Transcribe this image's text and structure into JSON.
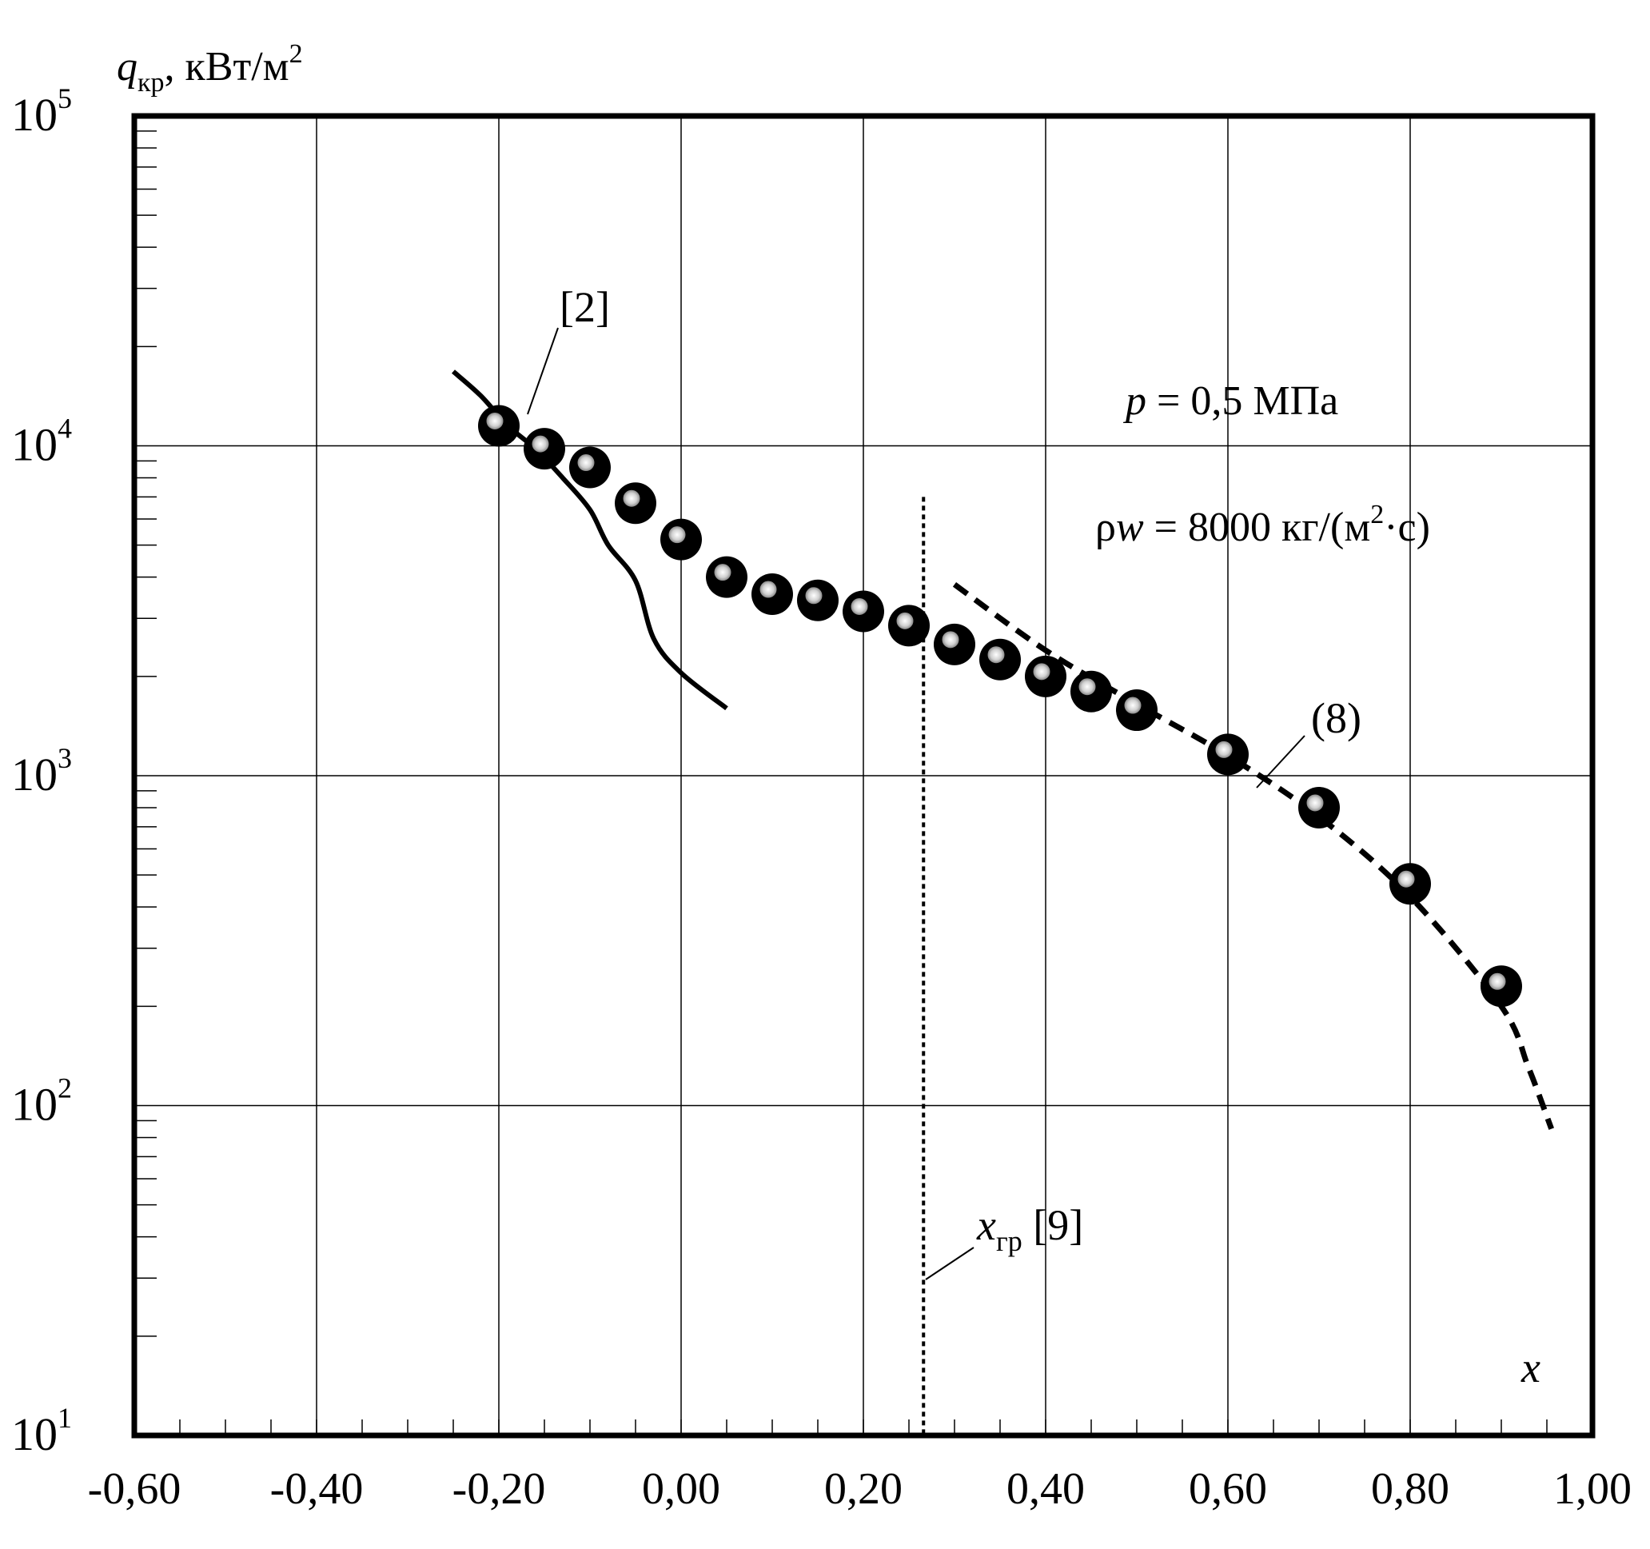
{
  "chart_data": {
    "type": "scatter",
    "xaxis": {
      "label": "x",
      "min": -0.6,
      "max": 1.0,
      "ticks": [
        -0.6,
        -0.4,
        -0.2,
        0.0,
        0.2,
        0.4,
        0.6,
        0.8,
        1.0
      ],
      "tick_labels": [
        "-0,60",
        "-0,40",
        "-0,20",
        "0,00",
        "0,20",
        "0,40",
        "0,60",
        "0,80",
        "1,00"
      ]
    },
    "yaxis": {
      "label_main": "q",
      "label_sub": "кр",
      "label_unit": ", кВт/м",
      "label_unit_sup": "2",
      "scale": "log",
      "min": 10,
      "max": 100000,
      "ticks": [
        10,
        100,
        1000,
        10000,
        100000
      ],
      "tick_labels": [
        {
          "base": "10",
          "exp": "1"
        },
        {
          "base": "10",
          "exp": "2"
        },
        {
          "base": "10",
          "exp": "3"
        },
        {
          "base": "10",
          "exp": "4"
        },
        {
          "base": "10",
          "exp": "5"
        }
      ]
    },
    "grid": true,
    "series": [
      {
        "kind": "markers",
        "points": [
          [
            -0.2,
            11500
          ],
          [
            -0.15,
            9800
          ],
          [
            -0.1,
            8600
          ],
          [
            -0.05,
            6700
          ],
          [
            0.0,
            5200
          ],
          [
            0.05,
            4000
          ],
          [
            0.1,
            3550
          ],
          [
            0.15,
            3400
          ],
          [
            0.2,
            3150
          ],
          [
            0.25,
            2850
          ],
          [
            0.3,
            2500
          ],
          [
            0.35,
            2250
          ],
          [
            0.4,
            2000
          ],
          [
            0.45,
            1800
          ],
          [
            0.5,
            1580
          ],
          [
            0.6,
            1160
          ],
          [
            0.7,
            800
          ],
          [
            0.8,
            470
          ],
          [
            0.9,
            230
          ]
        ]
      },
      {
        "kind": "solid-line",
        "name": "[2]",
        "points": [
          [
            -0.25,
            16800
          ],
          [
            -0.22,
            14200
          ],
          [
            -0.19,
            11500
          ],
          [
            -0.16,
            9800
          ],
          [
            -0.13,
            8000
          ],
          [
            -0.1,
            6400
          ],
          [
            -0.08,
            5000
          ],
          [
            -0.05,
            3900
          ],
          [
            -0.03,
            2600
          ],
          [
            0.0,
            2050
          ],
          [
            0.05,
            1600
          ]
        ]
      },
      {
        "kind": "dashed-line",
        "name": "(8)",
        "points": [
          [
            0.3,
            3800
          ],
          [
            0.4,
            2400
          ],
          [
            0.5,
            1650
          ],
          [
            0.6,
            1150
          ],
          [
            0.7,
            750
          ],
          [
            0.8,
            430
          ],
          [
            0.9,
            200
          ],
          [
            0.93,
            130
          ],
          [
            0.955,
            85
          ]
        ]
      },
      {
        "kind": "dotted-vertical",
        "name": "x",
        "name_sub": "гр",
        "name_ref": " [9]",
        "x": 0.266,
        "y_from": 10,
        "y_to": 7000
      }
    ],
    "annotations": {
      "pressure": {
        "var": "p",
        "text": " = 0,5 МПа"
      },
      "mass_flux": {
        "var_rho": "ρ",
        "var_w": "w",
        "text": " = 8000 кг/(м",
        "sup": "2",
        "tail": "·с)"
      }
    }
  }
}
